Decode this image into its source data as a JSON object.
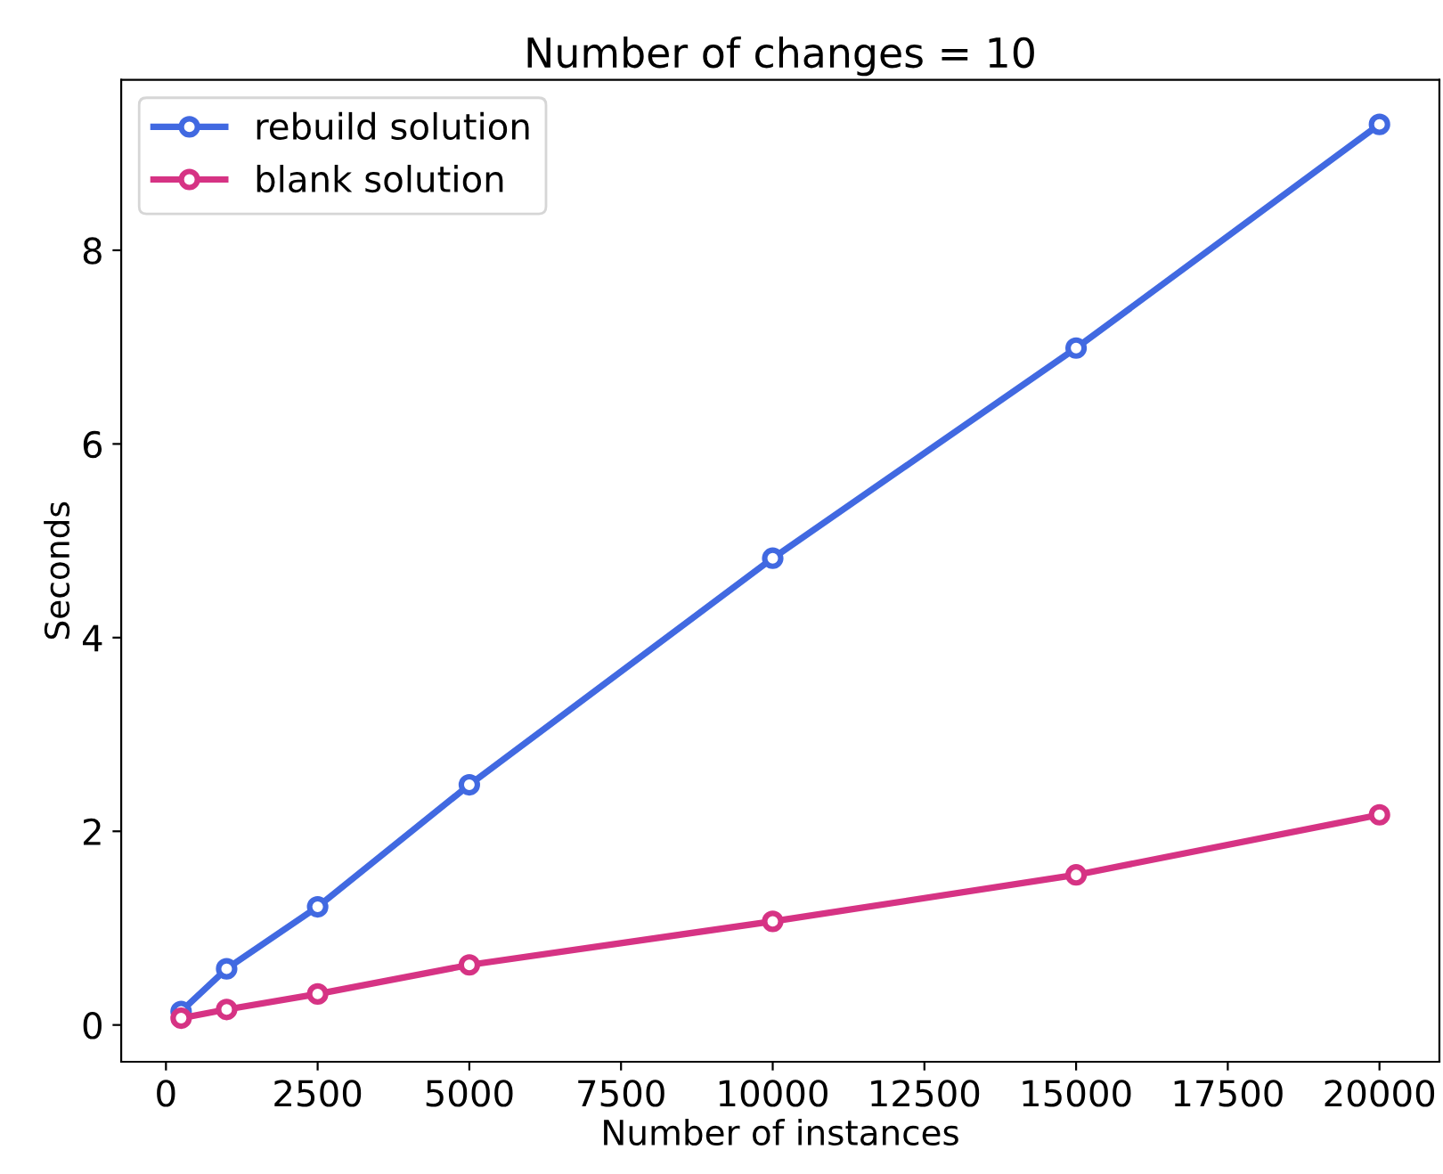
{
  "chart_data": {
    "type": "line",
    "title": "Number of changes = 10",
    "xlabel": "Number of instances",
    "ylabel": "Seconds",
    "x": [
      250,
      1000,
      2500,
      5000,
      10000,
      15000,
      20000
    ],
    "series": [
      {
        "name": "rebuild solution",
        "color": "#4169e1",
        "values": [
          0.14,
          0.58,
          1.22,
          2.48,
          4.82,
          6.99,
          9.3
        ]
      },
      {
        "name": "blank solution",
        "color": "#d63384",
        "values": [
          0.07,
          0.16,
          0.32,
          0.62,
          1.07,
          1.55,
          2.17
        ]
      }
    ],
    "xlim": [
      -737.5,
      20987.5
    ],
    "xticks": [
      0,
      2500,
      5000,
      7500,
      10000,
      12500,
      15000,
      17500,
      20000
    ],
    "ylim": [
      -0.38,
      9.76
    ],
    "yticks": [
      0,
      2,
      4,
      6,
      8
    ],
    "grid": false,
    "legend": "top left",
    "marker": "circle",
    "line_style": "solid"
  }
}
